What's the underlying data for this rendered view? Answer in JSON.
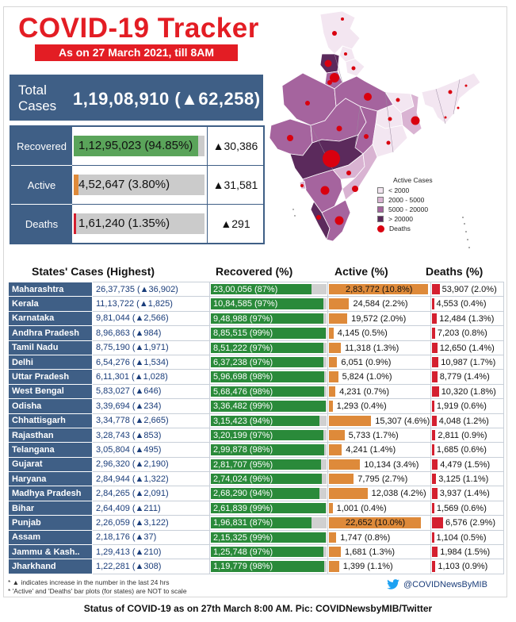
{
  "title": "COVID-19 Tracker",
  "subtitle": "As on 27 March 2021, till 8AM",
  "total": {
    "label": "Total Cases",
    "value": "1,19,08,910 (▲62,258)"
  },
  "summary": [
    {
      "label": "Recovered",
      "text": "1,12,95,023 (94.85%)",
      "pct": 94.85,
      "delta": "▲30,386",
      "color": "#5aa45a"
    },
    {
      "label": "Active",
      "text": "4,52,647 (3.80%)",
      "pct": 3.8,
      "delta": "▲31,581",
      "color": "#de8a3a"
    },
    {
      "label": "Deaths",
      "text": "1,61,240 (1.35%)",
      "pct": 1.35,
      "delta": "▲291",
      "color": "#d42030"
    }
  ],
  "legend": {
    "title": "Active Cases",
    "items": [
      {
        "label": "< 2000",
        "color": "#f3e6f1"
      },
      {
        "label": "2000 - 5000",
        "color": "#d9b3d2"
      },
      {
        "label": "5000 - 20000",
        "color": "#a5649e"
      },
      {
        "label": "> 20000",
        "color": "#5b2a5c"
      }
    ],
    "deaths_label": "Deaths"
  },
  "headers": {
    "states": "States' Cases (Highest)",
    "recovered": "Recovered (%)",
    "active": "Active (%)",
    "deaths": "Deaths (%)"
  },
  "chart_data": {
    "type": "table",
    "columns": [
      "States' Cases (Highest)",
      "Recovered (%)",
      "Active (%)",
      "Deaths (%)"
    ],
    "rows": [
      {
        "state": "Maharashtra",
        "cases": "26,37,735 (▲36,902)",
        "recovered": "23,00,056 (87%)",
        "rec_pct": 87,
        "active": "2,83,772 (10.8%)",
        "act_pct": 10.8,
        "deaths": "53,907 (2.0%)",
        "dth_pct": 2.0
      },
      {
        "state": "Kerala",
        "cases": "11,13,722 (▲1,825)",
        "recovered": "10,84,585 (97%)",
        "rec_pct": 97,
        "active": "24,584 (2.2%)",
        "act_pct": 2.2,
        "deaths": "4,553 (0.4%)",
        "dth_pct": 0.4
      },
      {
        "state": "Karnataka",
        "cases": "9,81,044 (▲2,566)",
        "recovered": "9,48,988 (97%)",
        "rec_pct": 97,
        "active": "19,572 (2.0%)",
        "act_pct": 2.0,
        "deaths": "12,484 (1.3%)",
        "dth_pct": 1.3
      },
      {
        "state": "Andhra Pradesh",
        "cases": "8,96,863 (▲984)",
        "recovered": "8,85,515 (99%)",
        "rec_pct": 99,
        "active": "4,145 (0.5%)",
        "act_pct": 0.5,
        "deaths": "7,203 (0.8%)",
        "dth_pct": 0.8
      },
      {
        "state": "Tamil Nadu",
        "cases": "8,75,190 (▲1,971)",
        "recovered": "8,51,222 (97%)",
        "rec_pct": 97,
        "active": "11,318 (1.3%)",
        "act_pct": 1.3,
        "deaths": "12,650 (1.4%)",
        "dth_pct": 1.4
      },
      {
        "state": "Delhi",
        "cases": "6,54,276 (▲1,534)",
        "recovered": "6,37,238 (97%)",
        "rec_pct": 97,
        "active": "6,051 (0.9%)",
        "act_pct": 0.9,
        "deaths": "10,987 (1.7%)",
        "dth_pct": 1.7
      },
      {
        "state": "Uttar Pradesh",
        "cases": "6,11,301 (▲1,028)",
        "recovered": "5,96,698 (98%)",
        "rec_pct": 98,
        "active": "5,824 (1.0%)",
        "act_pct": 1.0,
        "deaths": "8,779 (1.4%)",
        "dth_pct": 1.4
      },
      {
        "state": "West Bengal",
        "cases": "5,83,027 (▲646)",
        "recovered": "5,68,476 (98%)",
        "rec_pct": 98,
        "active": "4,231 (0.7%)",
        "act_pct": 0.7,
        "deaths": "10,320 (1.8%)",
        "dth_pct": 1.8
      },
      {
        "state": "Odisha",
        "cases": "3,39,694 (▲234)",
        "recovered": "3,36,482 (99%)",
        "rec_pct": 99,
        "active": "1,293 (0.4%)",
        "act_pct": 0.4,
        "deaths": "1,919 (0.6%)",
        "dth_pct": 0.6
      },
      {
        "state": "Chhattisgarh",
        "cases": "3,34,778 (▲2,665)",
        "recovered": "3,15,423 (94%)",
        "rec_pct": 94,
        "active": "15,307 (4.6%)",
        "act_pct": 4.6,
        "deaths": "4,048 (1.2%)",
        "dth_pct": 1.2
      },
      {
        "state": "Rajasthan",
        "cases": "3,28,743 (▲853)",
        "recovered": "3,20,199 (97%)",
        "rec_pct": 97,
        "active": "5,733 (1.7%)",
        "act_pct": 1.7,
        "deaths": "2,811 (0.9%)",
        "dth_pct": 0.9
      },
      {
        "state": "Telangana",
        "cases": "3,05,804 (▲495)",
        "recovered": "2,99,878 (98%)",
        "rec_pct": 98,
        "active": "4,241 (1.4%)",
        "act_pct": 1.4,
        "deaths": "1,685 (0.6%)",
        "dth_pct": 0.6
      },
      {
        "state": "Gujarat",
        "cases": "2,96,320 (▲2,190)",
        "recovered": "2,81,707 (95%)",
        "rec_pct": 95,
        "active": "10,134 (3.4%)",
        "act_pct": 3.4,
        "deaths": "4,479 (1.5%)",
        "dth_pct": 1.5
      },
      {
        "state": "Haryana",
        "cases": "2,84,944 (▲1,322)",
        "recovered": "2,74,024 (96%)",
        "rec_pct": 96,
        "active": "7,795 (2.7%)",
        "act_pct": 2.7,
        "deaths": "3,125 (1.1%)",
        "dth_pct": 1.1
      },
      {
        "state": "Madhya Pradesh",
        "cases": "2,84,265 (▲2,091)",
        "recovered": "2,68,290 (94%)",
        "rec_pct": 94,
        "active": "12,038 (4.2%)",
        "act_pct": 4.2,
        "deaths": "3,937 (1.4%)",
        "dth_pct": 1.4
      },
      {
        "state": "Bihar",
        "cases": "2,64,409 (▲211)",
        "recovered": "2,61,839 (99%)",
        "rec_pct": 99,
        "active": "1,001 (0.4%)",
        "act_pct": 0.4,
        "deaths": "1,569 (0.6%)",
        "dth_pct": 0.6
      },
      {
        "state": "Punjab",
        "cases": "2,26,059 (▲3,122)",
        "recovered": "1,96,831 (87%)",
        "rec_pct": 87,
        "active": "22,652 (10.0%)",
        "act_pct": 10.0,
        "deaths": "6,576 (2.9%)",
        "dth_pct": 2.9
      },
      {
        "state": "Assam",
        "cases": "2,18,176 (▲37)",
        "recovered": "2,15,325 (99%)",
        "rec_pct": 99,
        "active": "1,747 (0.8%)",
        "act_pct": 0.8,
        "deaths": "1,104 (0.5%)",
        "dth_pct": 0.5
      },
      {
        "state": "Jammu & Kash..",
        "cases": "1,29,413 (▲210)",
        "recovered": "1,25,748 (97%)",
        "rec_pct": 97,
        "active": "1,681 (1.3%)",
        "act_pct": 1.3,
        "deaths": "1,984 (1.5%)",
        "dth_pct": 1.5
      },
      {
        "state": "Jharkhand",
        "cases": "1,22,281 (▲308)",
        "recovered": "1,19,779 (98%)",
        "rec_pct": 98,
        "active": "1,399 (1.1%)",
        "act_pct": 1.1,
        "deaths": "1,103 (0.9%)",
        "dth_pct": 0.9
      }
    ],
    "bar_colors": {
      "recovered": "#2a8a3a",
      "active": "#de8a3a",
      "deaths": "#d42030"
    }
  },
  "footnotes": [
    "* ▲ indicates increase in the number in the last 24 hrs",
    "* 'Active' and 'Deaths' bar plots (for states) are NOT to scale"
  ],
  "twitter_handle": "@COVIDNewsByMIB",
  "caption": "Status of COVID-19 as on 27th March 8:00 AM. Pic: COVIDNewsbyMIB/Twitter"
}
